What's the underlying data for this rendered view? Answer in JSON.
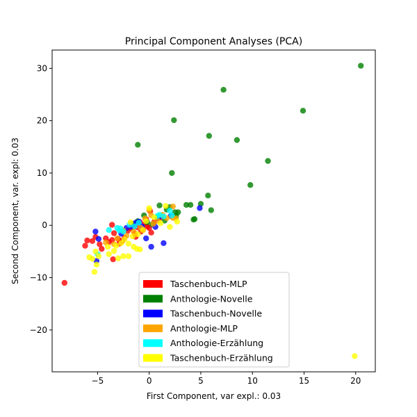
{
  "chart_data": {
    "type": "scatter",
    "title": "Principal Component Analyses (PCA)",
    "xlabel": "First Component, var expl.: 0.03",
    "ylabel": "Second Component, var. expl: 0.03",
    "xlim": [
      -9.4,
      21.9
    ],
    "ylim": [
      -28,
      33.5
    ],
    "xticks": [
      -5,
      0,
      5,
      10,
      15,
      20
    ],
    "yticks": [
      -20,
      -10,
      0,
      10,
      20,
      30
    ],
    "grid": false,
    "legend_position": "lower-center",
    "series": [
      {
        "name": "Taschenbuch-MLP",
        "color": "#ff0000",
        "points": [
          [
            -8.2,
            -11
          ],
          [
            -6.2,
            -3.9
          ],
          [
            -6,
            -2.9
          ],
          [
            -5.5,
            -3
          ],
          [
            -5.2,
            -2.2
          ],
          [
            -4.8,
            -3.6
          ],
          [
            -4.6,
            -4.5
          ],
          [
            -4.2,
            -2.5
          ],
          [
            -3.9,
            -3.2
          ],
          [
            -3.6,
            -2.8
          ],
          [
            -3.6,
            0.1
          ],
          [
            -3.5,
            -6.5
          ],
          [
            -3.4,
            -1.5
          ],
          [
            -3,
            -2.6
          ],
          [
            -2.6,
            -3
          ],
          [
            -2.4,
            -2.4
          ],
          [
            -2.1,
            -1.1
          ],
          [
            -1.8,
            -0.6
          ],
          [
            -1.5,
            -0.3
          ],
          [
            -1.4,
            -1.6
          ],
          [
            -1.1,
            -0.4
          ],
          [
            -0.9,
            0.6
          ],
          [
            -0.8,
            -1.2
          ],
          [
            -0.6,
            -0.9
          ],
          [
            -0.4,
            0.3
          ],
          [
            -0.2,
            -0.2
          ],
          [
            0,
            -0.5
          ],
          [
            0.1,
            2.7
          ],
          [
            0.2,
            -1.4
          ],
          [
            0.5,
            0.7
          ],
          [
            1.1,
            1.5
          ],
          [
            -2.9,
            -3.5
          ],
          [
            -1.3,
            -2.2
          ],
          [
            -0.3,
            1.2
          ]
        ]
      },
      {
        "name": "Anthologie-Novelle",
        "color": "#008000",
        "points": [
          [
            20.5,
            30.5
          ],
          [
            7.2,
            25.9
          ],
          [
            14.9,
            21.9
          ],
          [
            2.4,
            20.1
          ],
          [
            5.8,
            17.1
          ],
          [
            8.5,
            16.3
          ],
          [
            -1.1,
            15.4
          ],
          [
            11.5,
            12.3
          ],
          [
            2.2,
            10
          ],
          [
            9.8,
            7.7
          ],
          [
            5.7,
            5.7
          ],
          [
            5,
            4.1
          ],
          [
            6,
            2.9
          ],
          [
            3.6,
            3.9
          ],
          [
            4.0,
            3.9
          ],
          [
            4.4,
            1.2
          ],
          [
            4.3,
            1.1
          ],
          [
            1,
            3.8
          ],
          [
            1.7,
            3
          ],
          [
            2.0,
            3.5
          ],
          [
            2.5,
            2.5
          ],
          [
            2.6,
            1.8
          ],
          [
            2.8,
            2.5
          ],
          [
            1.5,
            0.9
          ],
          [
            0.8,
            1.6
          ],
          [
            -0.5,
            1.9
          ],
          [
            -0.2,
            0.6
          ],
          [
            -1.1,
            0.8
          ],
          [
            -1.6,
            0.3
          ],
          [
            0.3,
            0.2
          ]
        ]
      },
      {
        "name": "Taschenbuch-Novelle",
        "color": "#0000ff",
        "points": [
          [
            4.9,
            3.3
          ],
          [
            1.4,
            -3.4
          ],
          [
            0.2,
            -4.1
          ],
          [
            -5.1,
            -6.8
          ],
          [
            -5.2,
            -1.2
          ],
          [
            -4.9,
            -2.6
          ],
          [
            -2.7,
            -1.6
          ],
          [
            -2.2,
            -0.5
          ],
          [
            -1.3,
            0.5
          ],
          [
            -0.7,
            -0.2
          ],
          [
            -0.3,
            -2.5
          ],
          [
            0.6,
            -0.3
          ],
          [
            0.9,
            1.3
          ],
          [
            2.1,
            1.8
          ],
          [
            -1,
            0.7
          ],
          [
            -1.7,
            -0.3
          ]
        ]
      },
      {
        "name": "Anthologie-MLP",
        "color": "#ffa500",
        "points": [
          [
            2.3,
            3.6
          ],
          [
            2.3,
            1.4
          ],
          [
            2.6,
            1.3
          ],
          [
            1.3,
            2
          ],
          [
            0.9,
            0.8
          ],
          [
            0.4,
            0.3
          ],
          [
            0.2,
            1.9
          ],
          [
            0,
            2.9
          ],
          [
            -0.4,
            1.3
          ],
          [
            -0.8,
            -0.5
          ],
          [
            -1.5,
            -1.2
          ],
          [
            -2.2,
            -2
          ],
          [
            -2.5,
            -1
          ],
          [
            -3.1,
            -2.5
          ],
          [
            -3.4,
            -3.6
          ],
          [
            -4.2,
            -3.3
          ],
          [
            1.7,
            1.4
          ]
        ]
      },
      {
        "name": "Anthologie-Erzählung",
        "color": "#00ffff",
        "points": [
          [
            -5,
            -5.5
          ],
          [
            -3.9,
            -0.9
          ],
          [
            -3.1,
            -0.5
          ],
          [
            -2.9,
            -1.0
          ],
          [
            -2.8,
            -0.6
          ],
          [
            -2.5,
            -1.2
          ],
          [
            -1.9,
            0.1
          ],
          [
            -1.4,
            -0.2
          ],
          [
            -1,
            0.5
          ],
          [
            0.8,
            1.8
          ],
          [
            1.0,
            2.0
          ],
          [
            1.4,
            1.7
          ],
          [
            2.0,
            2.8
          ],
          [
            2.2,
            1.9
          ]
        ]
      },
      {
        "name": "Taschenbuch-Erzählung",
        "color": "#ffff00",
        "points": [
          [
            19.9,
            -25
          ],
          [
            -5.3,
            -8.9
          ],
          [
            -5.1,
            -7.5
          ],
          [
            -5.5,
            -6.4
          ],
          [
            -5.8,
            -6.1
          ],
          [
            -5.2,
            -5
          ],
          [
            -4.9,
            -5.9
          ],
          [
            -3.9,
            -5.5
          ],
          [
            -3.4,
            -4.9
          ],
          [
            -3,
            -6.3
          ],
          [
            -2.5,
            -5.9
          ],
          [
            -2,
            -5.9
          ],
          [
            -1.5,
            -4.1
          ],
          [
            -1.2,
            -4.5
          ],
          [
            -0.9,
            -4.6
          ],
          [
            -2,
            -3.5
          ],
          [
            -2.7,
            -3.4
          ],
          [
            -3.2,
            -3.9
          ],
          [
            -4,
            -4.1
          ],
          [
            -2.4,
            -2.7
          ],
          [
            -1.6,
            -2.1
          ],
          [
            -1.1,
            -1.7
          ],
          [
            -0.6,
            -0.9
          ],
          [
            -1.8,
            0.6
          ],
          [
            -0.3,
            0.8
          ],
          [
            0,
            3.3
          ],
          [
            0.5,
            1.5
          ],
          [
            1.6,
            3.7
          ],
          [
            2.7,
            0.7
          ],
          [
            2,
            -0.3
          ],
          [
            1.1,
            0.4
          ]
        ]
      }
    ]
  }
}
